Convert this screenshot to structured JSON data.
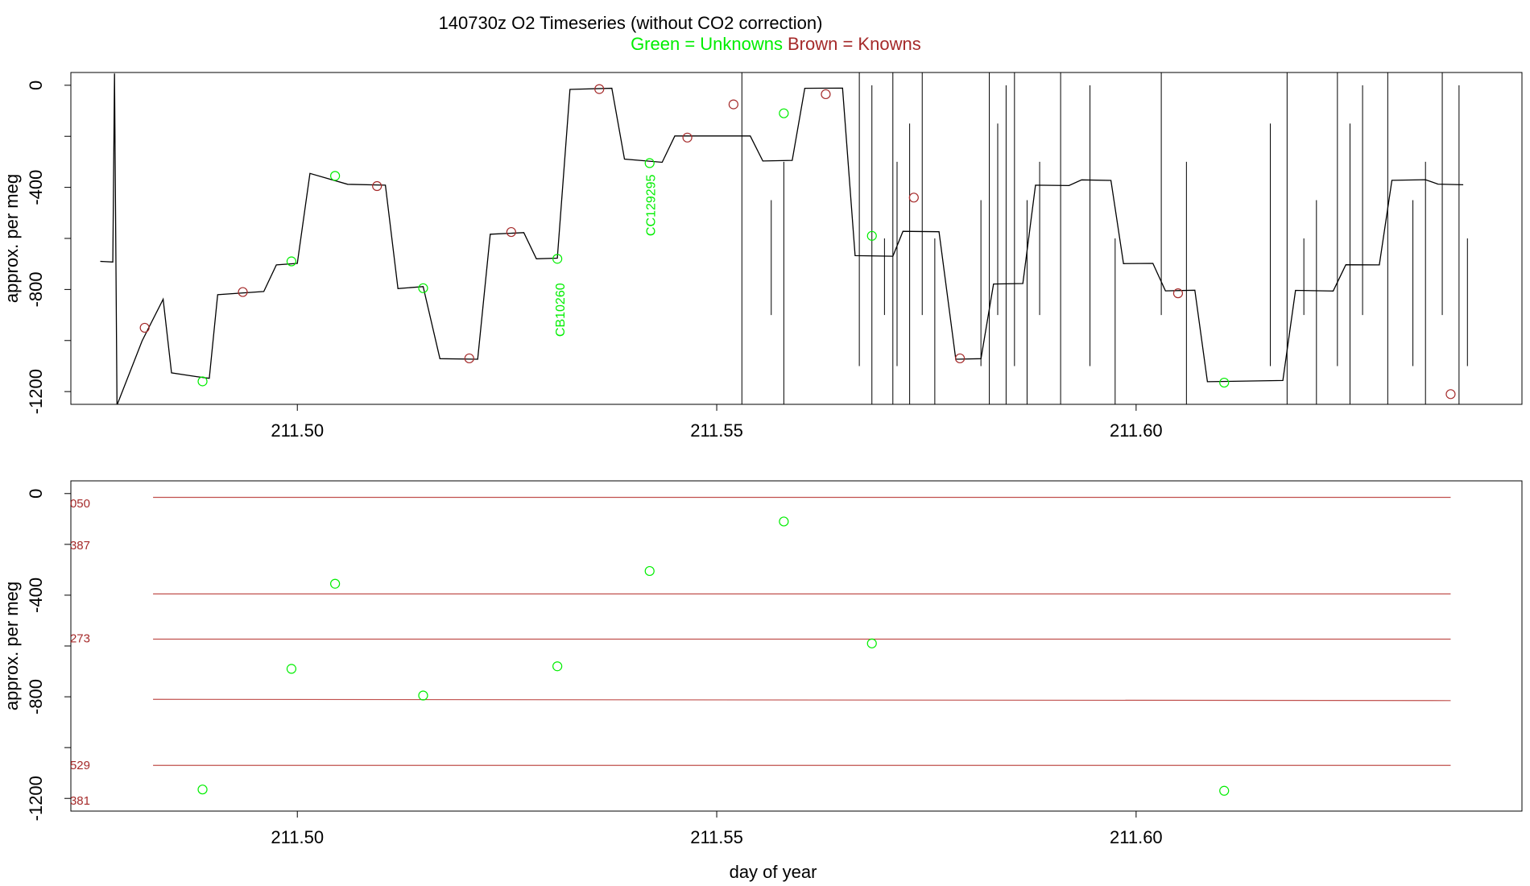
{
  "title": {
    "main": "140730z   O2 Timeseries (without CO2 correction)",
    "legend_green": "Green = Unknowns",
    "legend_brown": "Brown = Knowns"
  },
  "colors": {
    "unknown": "#00ee00",
    "known": "#a52a2a",
    "trace": "#000000",
    "ref_line": "#c0504d"
  },
  "chart_data": [
    {
      "id": "top",
      "type": "line",
      "ylabel": "approx. per meg",
      "xlim": [
        211.473,
        211.646
      ],
      "ylim": [
        -1250,
        50
      ],
      "x_ticks": [
        211.5,
        211.55,
        211.6
      ],
      "x_tick_labels": [
        "211.50",
        "211.55",
        "211.60"
      ],
      "y_ticks": [
        0,
        -400,
        -800,
        -1200
      ],
      "y_tick_labels": [
        "0",
        "-400",
        "-800",
        "-1200"
      ],
      "trace_steps": [
        [
          211.4765,
          -690
        ],
        [
          211.478,
          -690
        ],
        [
          211.4782,
          50
        ],
        [
          211.4785,
          -1250
        ],
        [
          211.4815,
          -1000
        ],
        [
          211.484,
          -840
        ],
        [
          211.485,
          -1130
        ],
        [
          211.488,
          -1145
        ],
        [
          211.4895,
          -1150
        ],
        [
          211.4905,
          -820
        ],
        [
          211.496,
          -805
        ],
        [
          211.4975,
          -700
        ],
        [
          211.5,
          -695
        ],
        [
          211.5015,
          -345
        ],
        [
          211.506,
          -390
        ],
        [
          211.5105,
          -395
        ],
        [
          211.512,
          -800
        ],
        [
          211.515,
          -790
        ],
        [
          211.517,
          -1070
        ],
        [
          211.5215,
          -1070
        ],
        [
          211.523,
          -580
        ],
        [
          211.527,
          -575
        ],
        [
          211.5285,
          -680
        ],
        [
          211.531,
          -680
        ],
        [
          211.5325,
          -20
        ],
        [
          211.5375,
          -15
        ],
        [
          211.539,
          -290
        ],
        [
          211.5435,
          -300
        ],
        [
          211.545,
          -195
        ],
        [
          211.554,
          -195
        ],
        [
          211.5555,
          -295
        ],
        [
          211.559,
          -295
        ],
        [
          211.5605,
          -15
        ],
        [
          211.565,
          -15
        ],
        [
          211.5665,
          -670
        ],
        [
          211.571,
          -670
        ],
        [
          211.5722,
          -570
        ],
        [
          211.5765,
          -570
        ],
        [
          211.5785,
          -1070
        ],
        [
          211.5815,
          -1070
        ],
        [
          211.583,
          -780
        ],
        [
          211.5865,
          -780
        ],
        [
          211.588,
          -395
        ],
        [
          211.592,
          -395
        ],
        [
          211.5935,
          -370
        ],
        [
          211.597,
          -370
        ],
        [
          211.5985,
          -695
        ],
        [
          211.602,
          -695
        ],
        [
          211.6035,
          -805
        ],
        [
          211.607,
          -805
        ],
        [
          211.6085,
          -1165
        ],
        [
          211.6175,
          -1160
        ],
        [
          211.619,
          -805
        ],
        [
          211.6235,
          -805
        ],
        [
          211.625,
          -700
        ],
        [
          211.629,
          -700
        ],
        [
          211.6305,
          -370
        ],
        [
          211.6345,
          -370
        ],
        [
          211.636,
          -390
        ],
        [
          211.639,
          -390
        ]
      ],
      "spike_x": [
        211.553,
        211.5565,
        211.558,
        211.567,
        211.5685,
        211.57,
        211.571,
        211.5715,
        211.573,
        211.5745,
        211.576,
        211.5815,
        211.5825,
        211.5835,
        211.5845,
        211.5855,
        211.587,
        211.5885,
        211.591,
        211.5945,
        211.5975,
        211.603,
        211.606,
        211.616,
        211.618,
        211.62,
        211.6215,
        211.624,
        211.6255,
        211.627,
        211.63,
        211.633,
        211.6345,
        211.6365,
        211.6385,
        211.6395
      ],
      "points_known": [
        {
          "x": 211.4818,
          "y": -950
        },
        {
          "x": 211.4935,
          "y": -810
        },
        {
          "x": 211.5095,
          "y": -395
        },
        {
          "x": 211.5205,
          "y": -1070
        },
        {
          "x": 211.5255,
          "y": -575
        },
        {
          "x": 211.536,
          "y": -15
        },
        {
          "x": 211.5465,
          "y": -205
        },
        {
          "x": 211.552,
          "y": -75
        },
        {
          "x": 211.563,
          "y": -35
        },
        {
          "x": 211.5735,
          "y": -440
        },
        {
          "x": 211.579,
          "y": -1070
        },
        {
          "x": 211.605,
          "y": -815
        },
        {
          "x": 211.6375,
          "y": -1210
        }
      ],
      "points_unknown": [
        {
          "x": 211.4887,
          "y": -1160
        },
        {
          "x": 211.4993,
          "y": -690
        },
        {
          "x": 211.5045,
          "y": -355
        },
        {
          "x": 211.515,
          "y": -795
        },
        {
          "x": 211.531,
          "y": -680
        },
        {
          "x": 211.542,
          "y": -305
        },
        {
          "x": 211.558,
          "y": -110
        },
        {
          "x": 211.5685,
          "y": -590
        },
        {
          "x": 211.6105,
          "y": -1165
        }
      ],
      "annotations": [
        {
          "text": "CB10260",
          "x": 211.5312,
          "y": -880
        },
        {
          "text": "CC129295",
          "x": 211.542,
          "y": -470
        }
      ]
    },
    {
      "id": "bottom",
      "type": "scatter",
      "xlabel": "day of year",
      "ylabel": "approx. per meg",
      "xlim": [
        211.473,
        211.646
      ],
      "ylim": [
        -1250,
        50
      ],
      "x_ticks": [
        211.5,
        211.55,
        211.6
      ],
      "x_tick_labels": [
        "211.50",
        "211.55",
        "211.60"
      ],
      "y_ticks": [
        0,
        -400,
        -800,
        -1200
      ],
      "y_tick_labels": [
        "0",
        "-400",
        "-800",
        "-1200"
      ],
      "reference_lines": [
        {
          "y_start": -15,
          "y_end": -15
        },
        {
          "y_start": -395,
          "y_end": -395
        },
        {
          "y_start": -573,
          "y_end": -573
        },
        {
          "y_start": -810,
          "y_end": -815
        },
        {
          "y_start": -1070,
          "y_end": -1070
        }
      ],
      "left_labels": [
        {
          "text": "050",
          "y": -55
        },
        {
          "text": "387",
          "y": -220
        },
        {
          "text": "273",
          "y": -585
        },
        {
          "text": "529",
          "y": -1085
        },
        {
          "text": "381",
          "y": -1225
        }
      ],
      "points_unknown": [
        {
          "x": 211.4887,
          "y": -1165
        },
        {
          "x": 211.4993,
          "y": -690
        },
        {
          "x": 211.5045,
          "y": -355
        },
        {
          "x": 211.515,
          "y": -795
        },
        {
          "x": 211.531,
          "y": -680
        },
        {
          "x": 211.542,
          "y": -305
        },
        {
          "x": 211.558,
          "y": -110
        },
        {
          "x": 211.5685,
          "y": -590
        },
        {
          "x": 211.6105,
          "y": -1170
        }
      ]
    }
  ]
}
